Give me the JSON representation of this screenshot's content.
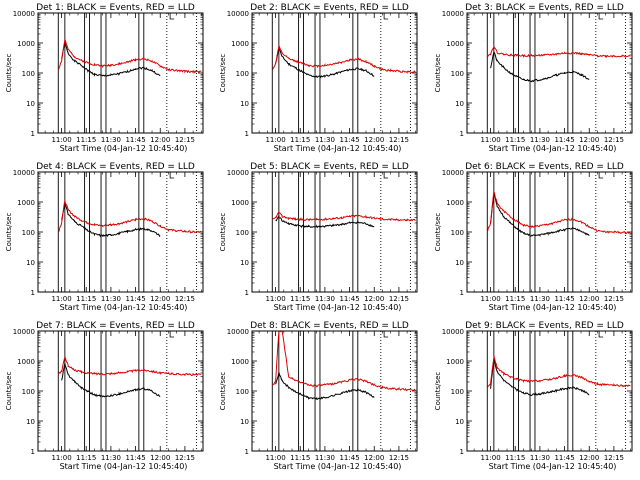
{
  "chart_data": [
    {
      "type": "line",
      "title": "Det 1: BLACK = Events, RED = LLD",
      "ylabel": "Counts/sec",
      "xlabel": "Start Time (04-Jan-12 10:45:40)",
      "yscale": "log",
      "ylim": [
        1,
        10000
      ],
      "xlim": [
        "10:45:40",
        "12:26:00"
      ],
      "x": [
        "10:58",
        "11:00",
        "11:02",
        "11:04",
        "11:08",
        "11:12",
        "11:16",
        "11:20",
        "11:25",
        "11:30",
        "11:35",
        "11:40",
        "11:45",
        "11:50",
        "11:55",
        "12:00",
        "12:05",
        "12:10",
        "12:15",
        "12:20",
        "12:25"
      ],
      "series": [
        {
          "name": "BLACK = Events",
          "color": "#000000",
          "values": [
            null,
            300,
            1000,
            450,
            250,
            180,
            120,
            90,
            80,
            85,
            95,
            110,
            140,
            150,
            120,
            80,
            null,
            null,
            null,
            null,
            null
          ]
        },
        {
          "name": "RED = LLD",
          "color": "#dd0000",
          "values": [
            130,
            250,
            1300,
            600,
            350,
            260,
            220,
            190,
            170,
            185,
            200,
            230,
            280,
            300,
            250,
            170,
            130,
            120,
            115,
            110,
            110
          ]
        }
      ]
    },
    {
      "type": "line",
      "title": "Det 2: BLACK = Events, RED = LLD",
      "ylabel": "Counts/sec",
      "xlabel": "Start Time (04-Jan-12 10:45:40)",
      "yscale": "log",
      "ylim": [
        1,
        10000
      ],
      "xlim": [
        "10:45:40",
        "12:26:00"
      ],
      "x": [
        "10:58",
        "11:00",
        "11:02",
        "11:04",
        "11:08",
        "11:12",
        "11:16",
        "11:20",
        "11:25",
        "11:30",
        "11:35",
        "11:40",
        "11:45",
        "11:50",
        "11:55",
        "12:00",
        "12:05",
        "12:10",
        "12:15",
        "12:20",
        "12:25"
      ],
      "series": [
        {
          "name": "BLACK = Events",
          "color": "#000000",
          "values": [
            null,
            200,
            700,
            350,
            200,
            150,
            110,
            85,
            75,
            80,
            90,
            110,
            130,
            140,
            120,
            80,
            null,
            null,
            null,
            null,
            null
          ]
        },
        {
          "name": "RED = LLD",
          "color": "#dd0000",
          "values": [
            130,
            200,
            800,
            450,
            300,
            250,
            210,
            180,
            170,
            180,
            200,
            230,
            270,
            290,
            240,
            170,
            130,
            120,
            115,
            110,
            110
          ]
        }
      ]
    },
    {
      "type": "line",
      "title": "Det 3: BLACK = Events, RED = LLD",
      "ylabel": "Counts/sec",
      "xlabel": "Start Time (04-Jan-12 10:45:40)",
      "yscale": "log",
      "ylim": [
        1,
        10000
      ],
      "xlim": [
        "10:45:40",
        "12:26:00"
      ],
      "x": [
        "10:58",
        "11:00",
        "11:02",
        "11:04",
        "11:08",
        "11:12",
        "11:16",
        "11:20",
        "11:25",
        "11:30",
        "11:35",
        "11:40",
        "11:45",
        "11:50",
        "11:55",
        "12:00",
        "12:05",
        "12:10",
        "12:15",
        "12:20",
        "12:25"
      ],
      "series": [
        {
          "name": "BLACK = Events",
          "color": "#000000",
          "values": [
            null,
            150,
            500,
            250,
            150,
            100,
            75,
            60,
            55,
            60,
            70,
            85,
            100,
            110,
            90,
            60,
            null,
            null,
            null,
            null,
            null
          ]
        },
        {
          "name": "RED = LLD",
          "color": "#dd0000",
          "values": [
            380,
            420,
            800,
            480,
            420,
            400,
            390,
            380,
            380,
            390,
            400,
            430,
            460,
            470,
            440,
            400,
            380,
            370,
            370,
            360,
            360
          ]
        }
      ]
    },
    {
      "type": "line",
      "title": "Det 4: BLACK = Events, RED = LLD",
      "ylabel": "Counts/sec",
      "xlabel": "Start Time (04-Jan-12 10:45:40)",
      "yscale": "log",
      "ylim": [
        1,
        10000
      ],
      "xlim": [
        "10:45:40",
        "12:26:00"
      ],
      "x": [
        "10:58",
        "11:00",
        "11:02",
        "11:04",
        "11:08",
        "11:12",
        "11:16",
        "11:20",
        "11:25",
        "11:30",
        "11:35",
        "11:40",
        "11:45",
        "11:50",
        "11:55",
        "12:00",
        "12:05",
        "12:10",
        "12:15",
        "12:20",
        "12:25"
      ],
      "series": [
        {
          "name": "BLACK = Events",
          "color": "#000000",
          "values": [
            null,
            250,
            900,
            400,
            220,
            160,
            110,
            85,
            75,
            80,
            90,
            105,
            120,
            130,
            110,
            75,
            null,
            null,
            null,
            null,
            null
          ]
        },
        {
          "name": "RED = LLD",
          "color": "#dd0000",
          "values": [
            100,
            200,
            1100,
            550,
            330,
            250,
            200,
            175,
            160,
            175,
            190,
            220,
            260,
            280,
            230,
            160,
            120,
            110,
            105,
            100,
            100
          ]
        }
      ]
    },
    {
      "type": "line",
      "title": "Det 5: BLACK = Events, RED = LLD",
      "ylabel": "Counts/sec",
      "xlabel": "Start Time (04-Jan-12 10:45:40)",
      "yscale": "log",
      "ylim": [
        1,
        10000
      ],
      "xlim": [
        "10:45:40",
        "12:26:00"
      ],
      "x": [
        "10:58",
        "11:00",
        "11:02",
        "11:04",
        "11:08",
        "11:12",
        "11:16",
        "11:20",
        "11:25",
        "11:30",
        "11:35",
        "11:40",
        "11:45",
        "11:50",
        "11:55",
        "12:00",
        "12:05",
        "12:10",
        "12:15",
        "12:20",
        "12:25"
      ],
      "series": [
        {
          "name": "BLACK = Events",
          "color": "#000000",
          "values": [
            null,
            230,
            330,
            240,
            190,
            170,
            160,
            150,
            150,
            155,
            165,
            180,
            200,
            210,
            190,
            150,
            null,
            null,
            null,
            null,
            null
          ]
        },
        {
          "name": "RED = LLD",
          "color": "#dd0000",
          "values": [
            250,
            300,
            450,
            330,
            290,
            270,
            260,
            260,
            260,
            270,
            280,
            300,
            330,
            350,
            320,
            290,
            270,
            260,
            255,
            250,
            250
          ]
        }
      ]
    },
    {
      "type": "line",
      "title": "Det 6: BLACK = Events, RED = LLD",
      "ylabel": "Counts/sec",
      "xlabel": "Start Time (04-Jan-12 10:45:40)",
      "yscale": "log",
      "ylim": [
        1,
        10000
      ],
      "xlim": [
        "10:45:40",
        "12:26:00"
      ],
      "x": [
        "10:58",
        "11:00",
        "11:02",
        "11:04",
        "11:08",
        "11:12",
        "11:16",
        "11:20",
        "11:25",
        "11:30",
        "11:35",
        "11:40",
        "11:45",
        "11:50",
        "11:55",
        "12:00",
        "12:05",
        "12:10",
        "12:15",
        "12:20",
        "12:25"
      ],
      "series": [
        {
          "name": "BLACK = Events",
          "color": "#000000",
          "values": [
            null,
            200,
            2000,
            700,
            330,
            200,
            130,
            90,
            75,
            80,
            90,
            105,
            120,
            130,
            110,
            75,
            null,
            null,
            null,
            null,
            null
          ]
        },
        {
          "name": "RED = LLD",
          "color": "#dd0000",
          "values": [
            100,
            200,
            2300,
            900,
            500,
            320,
            230,
            170,
            150,
            160,
            180,
            210,
            250,
            270,
            220,
            150,
            110,
            100,
            100,
            95,
            95
          ]
        }
      ]
    },
    {
      "type": "line",
      "title": "Det 7: BLACK = Events, RED = LLD",
      "ylabel": "Counts/sec",
      "xlabel": "Start Time (04-Jan-12 10:45:40)",
      "yscale": "log",
      "ylim": [
        1,
        10000
      ],
      "xlim": [
        "10:45:40",
        "12:26:00"
      ],
      "x": [
        "10:58",
        "11:00",
        "11:02",
        "11:04",
        "11:08",
        "11:12",
        "11:16",
        "11:20",
        "11:25",
        "11:30",
        "11:35",
        "11:40",
        "11:45",
        "11:50",
        "11:55",
        "12:00",
        "12:05",
        "12:10",
        "12:15",
        "12:20",
        "12:25"
      ],
      "series": [
        {
          "name": "BLACK = Events",
          "color": "#000000",
          "values": [
            null,
            220,
            800,
            350,
            200,
            130,
            95,
            75,
            65,
            70,
            80,
            95,
            110,
            120,
            100,
            65,
            null,
            null,
            null,
            null,
            null
          ]
        },
        {
          "name": "RED = LLD",
          "color": "#dd0000",
          "values": [
            380,
            450,
            1400,
            700,
            500,
            430,
            400,
            380,
            370,
            380,
            400,
            440,
            480,
            500,
            460,
            400,
            380,
            370,
            360,
            350,
            350
          ]
        }
      ]
    },
    {
      "type": "line",
      "title": "Det 8: BLACK = Events, RED = LLD",
      "ylabel": "Counts/sec",
      "xlabel": "Start Time (04-Jan-12 10:45:40)",
      "yscale": "log",
      "ylim": [
        1,
        10000
      ],
      "xlim": [
        "10:45:40",
        "12:26:00"
      ],
      "x": [
        "10:58",
        "11:00",
        "11:02",
        "11:04",
        "11:08",
        "11:12",
        "11:16",
        "11:20",
        "11:25",
        "11:30",
        "11:35",
        "11:40",
        "11:45",
        "11:50",
        "11:55",
        "12:00",
        "12:05",
        "12:10",
        "12:15",
        "12:20",
        "12:25"
      ],
      "series": [
        {
          "name": "BLACK = Events",
          "color": "#000000",
          "values": [
            null,
            180,
            400,
            220,
            130,
            95,
            75,
            60,
            55,
            60,
            70,
            85,
            100,
            110,
            90,
            60,
            null,
            null,
            null,
            null,
            null
          ]
        },
        {
          "name": "RED = LLD",
          "color": "#dd0000",
          "values": [
            150,
            200,
            10000,
            10000,
            300,
            230,
            190,
            160,
            150,
            160,
            175,
            200,
            230,
            250,
            210,
            160,
            130,
            120,
            115,
            110,
            110
          ]
        }
      ]
    },
    {
      "type": "line",
      "title": "Det 9: BLACK = Events, RED = LLD",
      "ylabel": "Counts/sec",
      "xlabel": "Start Time (04-Jan-12 10:45:40)",
      "yscale": "log",
      "ylim": [
        1,
        10000
      ],
      "xlim": [
        "10:45:40",
        "12:26:00"
      ],
      "x": [
        "10:58",
        "11:00",
        "11:02",
        "11:04",
        "11:08",
        "11:12",
        "11:16",
        "11:20",
        "11:25",
        "11:30",
        "11:35",
        "11:40",
        "11:45",
        "11:50",
        "11:55",
        "12:00",
        "12:05",
        "12:10",
        "12:15",
        "12:20",
        "12:25"
      ],
      "series": [
        {
          "name": "BLACK = Events",
          "color": "#000000",
          "values": [
            null,
            120,
            1200,
            450,
            230,
            150,
            110,
            85,
            75,
            80,
            90,
            105,
            120,
            130,
            110,
            75,
            null,
            null,
            null,
            null,
            null
          ]
        },
        {
          "name": "RED = LLD",
          "color": "#dd0000",
          "values": [
            130,
            180,
            1400,
            600,
            380,
            300,
            250,
            220,
            210,
            220,
            240,
            270,
            320,
            340,
            290,
            210,
            170,
            160,
            155,
            150,
            150
          ]
        }
      ]
    }
  ],
  "shared": {
    "yticks": [
      {
        "v": 1,
        "label": "1"
      },
      {
        "v": 10,
        "label": "10"
      },
      {
        "v": 100,
        "label": "100"
      },
      {
        "v": 1000,
        "label": "1000"
      },
      {
        "v": 10000,
        "label": "10000"
      }
    ],
    "xticks": [
      {
        "t": "11:00",
        "label": "11:00"
      },
      {
        "t": "11:15",
        "label": "11:15"
      },
      {
        "t": "11:30",
        "label": "11:30"
      },
      {
        "t": "11:45",
        "label": "11:45"
      },
      {
        "t": "12:00",
        "label": "12:00"
      },
      {
        "t": "12:15",
        "label": "12:15"
      }
    ],
    "solid_markers": [
      "10:58",
      "11:02",
      "11:14",
      "11:17",
      "11:24",
      "11:27",
      "11:47",
      "11:50"
    ],
    "dotted_markers": [
      "12:04",
      "12:22"
    ]
  }
}
